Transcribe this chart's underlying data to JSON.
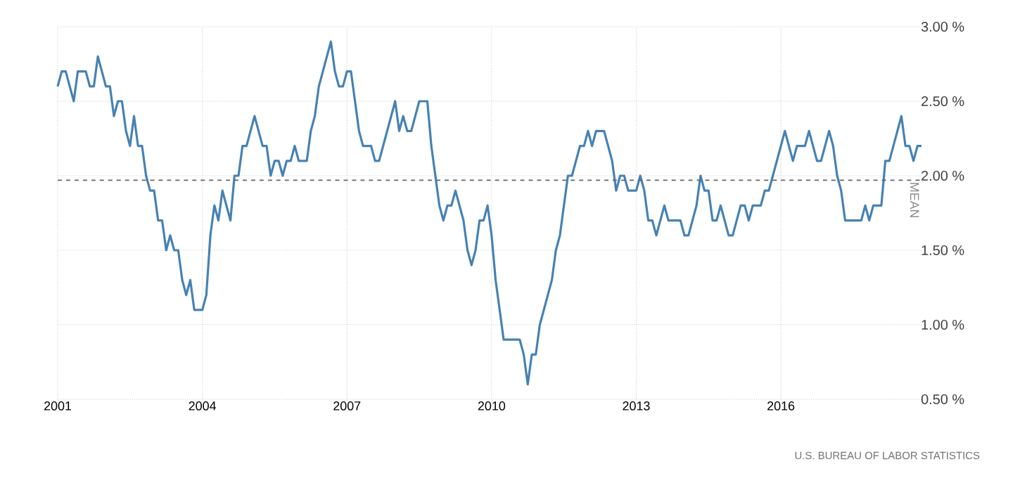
{
  "chart_data": {
    "type": "line",
    "xlim": [
      "2001-01",
      "2018-12"
    ],
    "xticks": [
      "2001",
      "2004",
      "2007",
      "2010",
      "2013",
      "2016"
    ],
    "ylim": [
      0.5,
      3.0
    ],
    "yticks": [
      {
        "value": 0.5,
        "label": "0.50 %"
      },
      {
        "value": 1.0,
        "label": "1.00 %"
      },
      {
        "value": 1.5,
        "label": "1.50 %"
      },
      {
        "value": 2.0,
        "label": "2.00 %"
      },
      {
        "value": 2.5,
        "label": "2.50 %"
      },
      {
        "value": 3.0,
        "label": "3.00 %"
      }
    ],
    "grid": true,
    "line_style": "solid",
    "ref_lines": [
      {
        "axis": "y",
        "value": 1.97,
        "label": "MEAN",
        "color": "#666666",
        "line_style": "dashed"
      }
    ],
    "annotations": [
      "U.S. BUREAU OF LABOR STATISTICS"
    ],
    "series": [
      {
        "color": "#4682b4",
        "x": [
          "2001-01",
          "2001-02",
          "2001-03",
          "2001-05",
          "2001-06",
          "2001-08",
          "2001-09",
          "2001-10",
          "2001-11",
          "2002-01",
          "2002-02",
          "2002-03",
          "2002-04",
          "2002-05",
          "2002-06",
          "2002-07",
          "2002-08",
          "2002-09",
          "2002-10",
          "2002-11",
          "2002-12",
          "2003-01",
          "2003-02",
          "2003-03",
          "2003-04",
          "2003-05",
          "2003-06",
          "2003-07",
          "2003-08",
          "2003-09",
          "2003-10",
          "2003-11",
          "2004-01",
          "2004-02",
          "2004-03",
          "2004-04",
          "2004-05",
          "2004-06",
          "2004-08",
          "2004-09",
          "2004-10",
          "2004-11",
          "2004-12",
          "2005-02",
          "2005-04",
          "2005-05",
          "2005-06",
          "2005-07",
          "2005-08",
          "2005-09",
          "2005-10",
          "2005-11",
          "2005-12",
          "2006-01",
          "2006-03",
          "2006-04",
          "2006-05",
          "2006-06",
          "2006-08",
          "2006-09",
          "2006-10",
          "2006-11",
          "2006-12",
          "2007-01",
          "2007-02",
          "2007-03",
          "2007-04",
          "2007-05",
          "2007-07",
          "2007-08",
          "2007-09",
          "2008-01",
          "2008-02",
          "2008-03",
          "2008-04",
          "2008-05",
          "2008-07",
          "2008-09",
          "2008-10",
          "2008-11",
          "2008-12",
          "2009-01",
          "2009-02",
          "2009-03",
          "2009-04",
          "2009-05",
          "2009-06",
          "2009-07",
          "2009-08",
          "2009-09",
          "2009-10",
          "2009-11",
          "2009-12",
          "2010-01",
          "2010-02",
          "2010-03",
          "2010-04",
          "2010-08",
          "2010-09",
          "2010-10",
          "2010-11",
          "2010-12",
          "2011-01",
          "2011-03",
          "2011-04",
          "2011-05",
          "2011-06",
          "2011-07",
          "2011-08",
          "2011-09",
          "2011-11",
          "2011-12",
          "2012-01",
          "2012-02",
          "2012-03",
          "2012-05",
          "2012-06",
          "2012-07",
          "2012-08",
          "2012-09",
          "2012-10",
          "2012-11",
          "2013-01",
          "2013-02",
          "2013-03",
          "2013-04",
          "2013-05",
          "2013-06",
          "2013-07",
          "2013-08",
          "2013-09",
          "2013-10",
          "2013-12",
          "2014-01",
          "2014-02",
          "2014-03",
          "2014-04",
          "2014-05",
          "2014-06",
          "2014-07",
          "2014-08",
          "2014-09",
          "2014-10",
          "2014-11",
          "2014-12",
          "2015-01",
          "2015-02",
          "2015-03",
          "2015-04",
          "2015-05",
          "2015-06",
          "2015-08",
          "2015-09",
          "2015-10",
          "2015-11",
          "2015-12",
          "2016-01",
          "2016-02",
          "2016-03",
          "2016-04",
          "2016-05",
          "2016-07",
          "2016-08",
          "2016-09",
          "2016-10",
          "2016-11",
          "2016-12",
          "2017-01",
          "2017-02",
          "2017-03",
          "2017-04",
          "2017-05",
          "2017-09",
          "2017-10",
          "2017-11",
          "2017-12",
          "2018-02",
          "2018-03",
          "2018-04",
          "2018-05",
          "2018-06",
          "2018-07",
          "2018-08",
          "2018-09",
          "2018-10",
          "2018-11",
          "2018-12"
        ],
        "values": [
          2.6,
          2.7,
          2.7,
          2.5,
          2.7,
          2.7,
          2.6,
          2.6,
          2.8,
          2.6,
          2.6,
          2.4,
          2.5,
          2.5,
          2.3,
          2.2,
          2.4,
          2.2,
          2.2,
          2.0,
          1.9,
          1.9,
          1.7,
          1.7,
          1.5,
          1.6,
          1.5,
          1.5,
          1.3,
          1.2,
          1.3,
          1.1,
          1.1,
          1.2,
          1.6,
          1.8,
          1.7,
          1.9,
          1.7,
          2.0,
          2.0,
          2.2,
          2.2,
          2.4,
          2.2,
          2.2,
          2.0,
          2.1,
          2.1,
          2.0,
          2.1,
          2.1,
          2.2,
          2.1,
          2.1,
          2.3,
          2.4,
          2.6,
          2.8,
          2.9,
          2.7,
          2.6,
          2.6,
          2.7,
          2.7,
          2.5,
          2.3,
          2.2,
          2.2,
          2.1,
          2.1,
          2.5,
          2.3,
          2.4,
          2.3,
          2.3,
          2.5,
          2.5,
          2.2,
          2.0,
          1.8,
          1.7,
          1.8,
          1.8,
          1.9,
          1.8,
          1.7,
          1.5,
          1.4,
          1.5,
          1.7,
          1.7,
          1.8,
          1.6,
          1.3,
          1.1,
          0.9,
          0.9,
          0.8,
          0.6,
          0.8,
          0.8,
          1.0,
          1.2,
          1.3,
          1.5,
          1.6,
          1.8,
          2.0,
          2.0,
          2.2,
          2.2,
          2.3,
          2.2,
          2.3,
          2.3,
          2.2,
          2.1,
          1.9,
          2.0,
          2.0,
          1.9,
          1.9,
          2.0,
          1.9,
          1.7,
          1.7,
          1.6,
          1.7,
          1.8,
          1.7,
          1.7,
          1.7,
          1.6,
          1.6,
          1.7,
          1.8,
          2.0,
          1.9,
          1.9,
          1.7,
          1.7,
          1.8,
          1.7,
          1.6,
          1.6,
          1.7,
          1.8,
          1.8,
          1.7,
          1.8,
          1.8,
          1.9,
          1.9,
          2.0,
          2.1,
          2.2,
          2.3,
          2.2,
          2.1,
          2.2,
          2.2,
          2.3,
          2.2,
          2.1,
          2.1,
          2.2,
          2.3,
          2.2,
          2.0,
          1.9,
          1.7,
          1.7,
          1.8,
          1.7,
          1.8,
          1.8,
          2.1,
          2.1,
          2.2,
          2.3,
          2.4,
          2.2,
          2.2,
          2.1,
          2.2,
          2.2
        ]
      }
    ]
  }
}
